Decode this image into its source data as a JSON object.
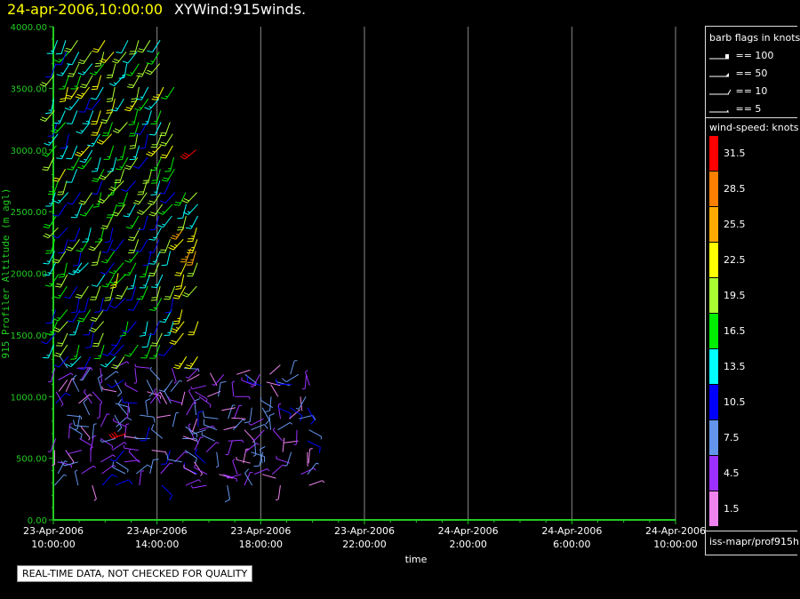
{
  "title": {
    "date": "24-apr-2006,10:00:00",
    "name": "XYWind:915winds."
  },
  "notice": "REAL-TIME DATA, NOT CHECKED FOR QUALITY",
  "legend": {
    "barb_title": "barb flags in knots",
    "barbs": [
      {
        "label": "== 100",
        "knots": 100
      },
      {
        "label": "== 50",
        "knots": 50
      },
      {
        "label": "== 10",
        "knots": 10
      },
      {
        "label": "== 5",
        "knots": 5
      }
    ],
    "speed_title": "wind-speed: knots",
    "speed_bins": [
      {
        "label": "31.5",
        "color": "#ff0000"
      },
      {
        "label": "28.5",
        "color": "#ff7f00"
      },
      {
        "label": "25.5",
        "color": "#ffaa00"
      },
      {
        "label": "22.5",
        "color": "#ffff00"
      },
      {
        "label": "19.5",
        "color": "#aaff33"
      },
      {
        "label": "16.5",
        "color": "#00ee00"
      },
      {
        "label": "13.5",
        "color": "#00ffff"
      },
      {
        "label": "10.5",
        "color": "#0000ff"
      },
      {
        "label": "7.5",
        "color": "#6495ed"
      },
      {
        "label": "4.5",
        "color": "#9b30ff"
      },
      {
        "label": "1.5",
        "color": "#ee82ee"
      }
    ],
    "source": "iss-mapr/prof915h"
  },
  "chart_data": {
    "type": "scatter",
    "subtype": "wind-barb time-height",
    "ylabel": "915 Profiler Altitude (m agl)",
    "xlabel": "time",
    "ylim": [
      0,
      4000
    ],
    "xlim": [
      "2006-04-23T10:00:00",
      "2006-04-24T10:00:00"
    ],
    "y_ticks": [
      "0.00",
      "500.00",
      "1000.00",
      "1500.00",
      "2000.00",
      "2500.00",
      "3000.00",
      "3500.00",
      "4000.00"
    ],
    "x_ticks": [
      {
        "date": "23-Apr-2006",
        "time": "10:00:00"
      },
      {
        "date": "23-Apr-2006",
        "time": "14:00:00"
      },
      {
        "date": "23-Apr-2006",
        "time": "18:00:00"
      },
      {
        "date": "23-Apr-2006",
        "time": "22:00:00"
      },
      {
        "date": "24-Apr-2006",
        "time": "2:00:00"
      },
      {
        "date": "24-Apr-2006",
        "time": "6:00:00"
      },
      {
        "date": "24-Apr-2006",
        "time": "10:00:00"
      }
    ],
    "grid": "vertical",
    "data_hours_range": [
      0,
      10
    ],
    "sample_barbs": [
      {
        "hours": 0.5,
        "alt": 3800,
        "speed": 11,
        "dir": 200
      },
      {
        "hours": 1.5,
        "alt": 3000,
        "speed": 14,
        "dir": 210
      },
      {
        "hours": 2.5,
        "alt": 2000,
        "speed": 23,
        "dir": 190
      },
      {
        "hours": 5.5,
        "alt": 3000,
        "speed": 31,
        "dir": 230
      },
      {
        "hours": 5.3,
        "alt": 2200,
        "speed": 26,
        "dir": 200
      },
      {
        "hours": 2.8,
        "alt": 700,
        "speed": 30,
        "dir": 250
      },
      {
        "hours": 7.0,
        "alt": 1000,
        "speed": 5,
        "dir": 90
      },
      {
        "hours": 9.2,
        "alt": 1100,
        "speed": 9,
        "dir": 270
      }
    ]
  }
}
